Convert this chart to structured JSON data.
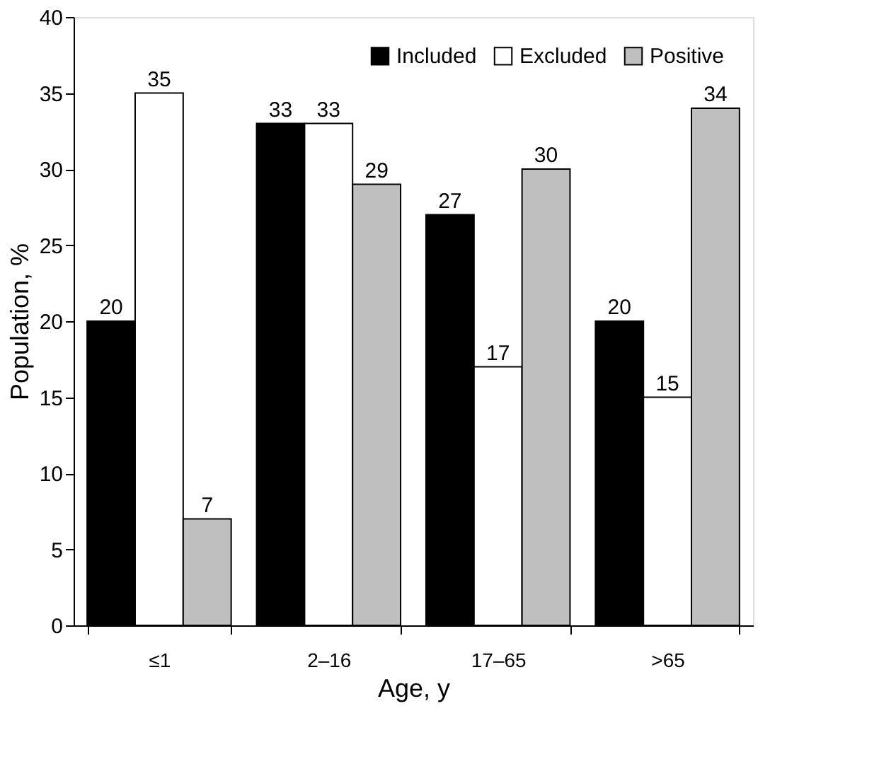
{
  "chart_data": {
    "type": "bar",
    "xlabel": "Age, y",
    "ylabel": "Population, %",
    "categories": [
      "≤1",
      "2–16",
      "17–65",
      ">65"
    ],
    "series": [
      {
        "name": "Included",
        "color": "#000000",
        "values": [
          20,
          33,
          27,
          20
        ]
      },
      {
        "name": "Excluded",
        "color": "#ffffff",
        "values": [
          35,
          33,
          17,
          15
        ]
      },
      {
        "name": "Positive",
        "color": "#bfbfbf",
        "values": [
          7,
          29,
          30,
          34
        ]
      }
    ],
    "ylim": [
      0,
      40
    ],
    "yticks": [
      0,
      5,
      10,
      15,
      20,
      25,
      30,
      35,
      40
    ],
    "data_labels": true,
    "grid": false,
    "legend": "top right"
  }
}
